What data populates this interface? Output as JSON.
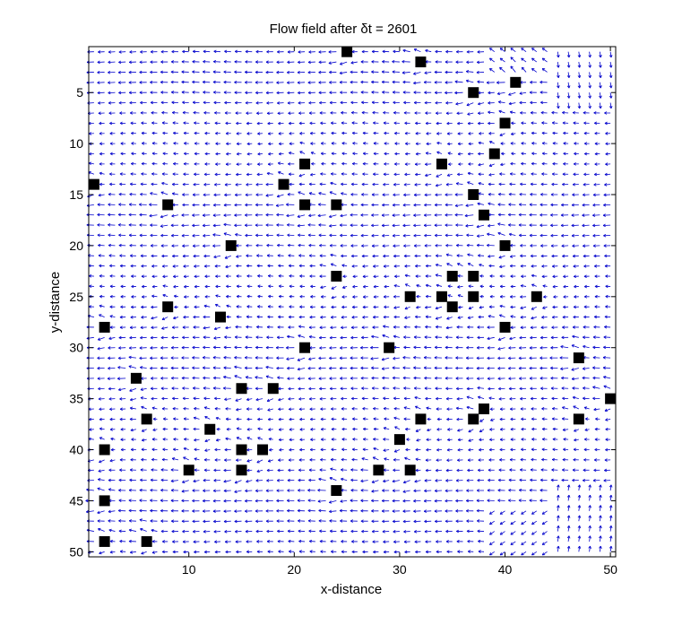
{
  "chart_data": {
    "type": "quiver",
    "title": "Flow field after  δt = 2601",
    "xlabel": "x-distance",
    "ylabel": "y-distance",
    "xlim": [
      0.5,
      50.5
    ],
    "ylim": [
      0.5,
      50.5
    ],
    "y_reversed": true,
    "grid": false,
    "x_ticks": [
      10,
      20,
      30,
      40,
      50
    ],
    "y_ticks": [
      5,
      10,
      15,
      20,
      25,
      30,
      35,
      40,
      45,
      50
    ],
    "arrow_color": "#0000cc",
    "obstacle_color": "#000000",
    "obstacles": [
      [
        25,
        1
      ],
      [
        32,
        2
      ],
      [
        41,
        4
      ],
      [
        37,
        5
      ],
      [
        40,
        8
      ],
      [
        39,
        11
      ],
      [
        21,
        12
      ],
      [
        34,
        12
      ],
      [
        1,
        14
      ],
      [
        19,
        14
      ],
      [
        37,
        15
      ],
      [
        8,
        16
      ],
      [
        21,
        16
      ],
      [
        24,
        16
      ],
      [
        38,
        17
      ],
      [
        14,
        20
      ],
      [
        40,
        20
      ],
      [
        24,
        23
      ],
      [
        35,
        23
      ],
      [
        37,
        23
      ],
      [
        31,
        25
      ],
      [
        34,
        25
      ],
      [
        37,
        25
      ],
      [
        43,
        25
      ],
      [
        35,
        26
      ],
      [
        8,
        26
      ],
      [
        13,
        27
      ],
      [
        2,
        28
      ],
      [
        40,
        28
      ],
      [
        21,
        30
      ],
      [
        29,
        30
      ],
      [
        47,
        31
      ],
      [
        5,
        33
      ],
      [
        15,
        34
      ],
      [
        18,
        34
      ],
      [
        50,
        35
      ],
      [
        38,
        36
      ],
      [
        6,
        37
      ],
      [
        32,
        37
      ],
      [
        37,
        37
      ],
      [
        47,
        37
      ],
      [
        12,
        38
      ],
      [
        30,
        39
      ],
      [
        2,
        40
      ],
      [
        15,
        40
      ],
      [
        17,
        40
      ],
      [
        10,
        42
      ],
      [
        15,
        42
      ],
      [
        28,
        42
      ],
      [
        31,
        42
      ],
      [
        24,
        44
      ],
      [
        2,
        45
      ],
      [
        2,
        49
      ],
      [
        6,
        49
      ]
    ]
  }
}
